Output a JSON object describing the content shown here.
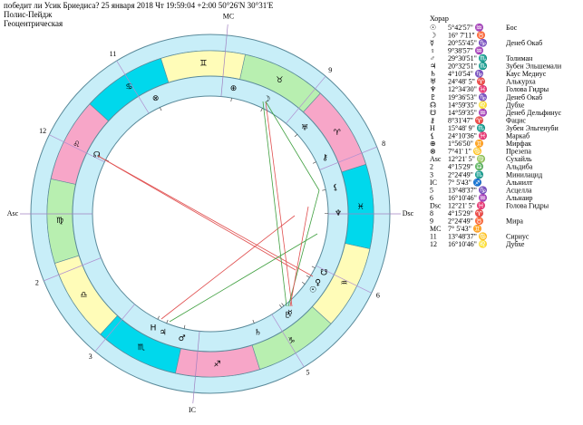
{
  "header": {
    "question": "победит ли Усик Бриедиса?  25 января 2018  Чт  19:59:04 +2:00 50°26'N  30°31'E",
    "house_system": "Полис-Пейдж",
    "mode": "Геоцентрическая"
  },
  "zodiac": [
    "♈",
    "♉",
    "♊",
    "♋",
    "♌",
    "♍",
    "♎",
    "♏",
    "♐",
    "♑",
    "♒",
    "♓"
  ],
  "table": {
    "title": "Хорар",
    "rows": [
      [
        "☉",
        "5°42'57\" ♒",
        "Бос"
      ],
      [
        "☽",
        "16° 7'11\" ♉",
        ""
      ],
      [
        "☿",
        "20°55'45\" ♑",
        "Денеб Окаб"
      ],
      [
        "♀",
        "9°38'57\" ♒",
        ""
      ],
      [
        "♂",
        "29°30'51\" ♏",
        "Толиман"
      ],
      [
        "♃",
        "20°32'51\" ♏",
        "Зубен Эльшемали"
      ],
      [
        "♄",
        "4°10'54\" ♑",
        "Каус Медиус"
      ],
      [
        "♅",
        "24°48' 5\" ♈",
        "Алькурха"
      ],
      [
        "♆",
        "12°34'30\" ♓",
        "Голова Гидры"
      ],
      [
        "♇",
        "19°36'53\" ♑",
        "Денеб Окаб"
      ],
      [
        "☊",
        "14°59'35\" ♌",
        "Дубхе"
      ],
      [
        "☋",
        "14°59'35\" ♒",
        "Денеб Дельфинус"
      ],
      [
        "⚷",
        "8°31'47\" ♈",
        "Фацис"
      ],
      [
        "H",
        "15°48' 9\" ♏",
        "Зубен Эльгенуби"
      ],
      [
        "⚸",
        "24°10'36\" ♓",
        "Маркаб"
      ],
      [
        "⊕",
        "1°56'50\" ♊",
        "Мирфак"
      ],
      [
        "⊗",
        "7°41' 1\" ♋",
        "Презепа"
      ],
      [
        "Asc",
        "12°21' 5\" ♍",
        "Сухайль"
      ],
      [
        "2",
        "4°15'29\" ♎",
        "Альдиба"
      ],
      [
        "3",
        "2°24'49\" ♏",
        "Минилацид"
      ],
      [
        "IC",
        "7° 5'43\" ♐",
        "Альнилт"
      ],
      [
        "5",
        "13°48'37\" ♑",
        "Асцелла"
      ],
      [
        "6",
        "16°10'46\" ♒",
        "Альнаир"
      ],
      [
        "Dsc",
        "12°21' 5\" ♓",
        "Голова Гидры"
      ],
      [
        "8",
        "4°15'29\" ♈",
        ""
      ],
      [
        "9",
        "2°24'49\" ♉",
        "Мира"
      ],
      [
        "MC",
        "7° 5'43\" ♊",
        ""
      ],
      [
        "11",
        "13°48'37\" ♋",
        "Сириус"
      ],
      [
        "12",
        "16°10'46\" ♌",
        "Дубхе"
      ]
    ]
  }
}
